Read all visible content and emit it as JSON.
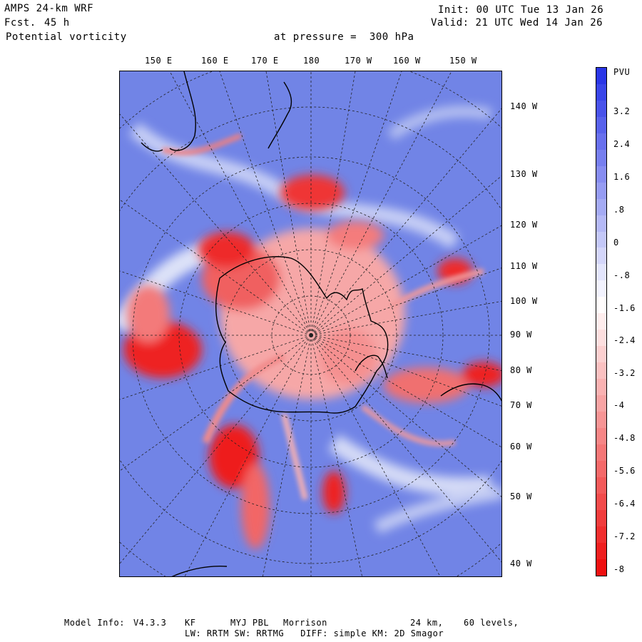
{
  "header": {
    "model": "AMPS 24-km WRF",
    "forecast_label": "Fcst.",
    "forecast_value": "45 h",
    "field": "Potential vorticity",
    "pressure_text": "at pressure =  300 hPa",
    "init_text": "Init: 00 UTC Tue 13 Jan 26",
    "valid_text": "Valid: 21 UTC Wed 14 Jan 26"
  },
  "map": {
    "top_longitudes": [
      "150 E",
      "160 E",
      "170 E",
      "180",
      "170 W",
      "160 W",
      "150 W"
    ],
    "right_longitudes": [
      "140 W",
      "130 W",
      "120 W",
      "110 W",
      "100 W",
      "90 W",
      "80 W",
      "70 W",
      "60 W",
      "50 W",
      "40 W"
    ],
    "colors": {
      "positive": "#2f3bd9",
      "negative": "#ee1111",
      "neutral": "#ffffff",
      "land_outline": "#000000"
    }
  },
  "colorbar": {
    "unit": "PVU",
    "tick_labels": [
      "3.2",
      "2.4",
      "1.6",
      ".8",
      "0",
      "-.8",
      "-1.6",
      "-2.4",
      "-3.2",
      "-4",
      "-4.8",
      "-5.6",
      "-6.4",
      "-7.2",
      "-8"
    ]
  },
  "footer": {
    "line1_label": "Model Info:",
    "version": "V4.3.3",
    "cumulus": "KF",
    "pbl": "MYJ PBL",
    "microphysics": "Morrison",
    "resolution": "24 km,",
    "levels": "60 levels,",
    "line2": "LW: RRTM SW: RRTMG   DIFF: simple KM: 2D Smagor"
  }
}
